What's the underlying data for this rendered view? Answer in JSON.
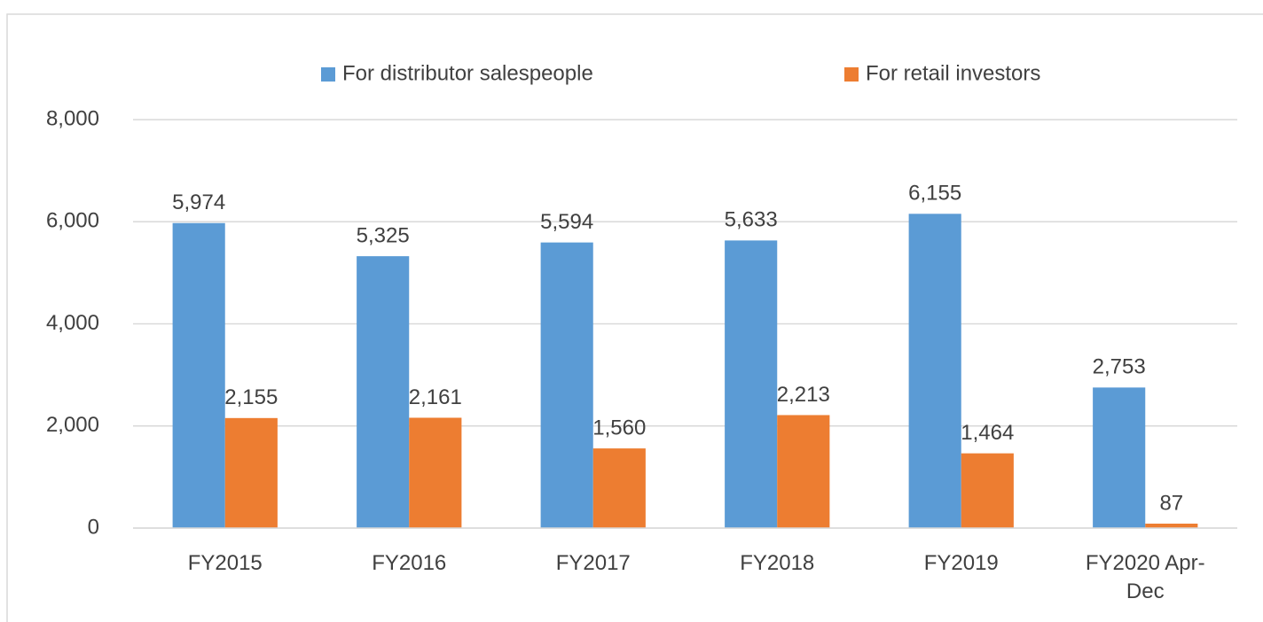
{
  "chart_data": {
    "type": "bar",
    "categories": [
      "FY2015",
      "FY2016",
      "FY2017",
      "FY2018",
      "FY2019",
      "FY2020 Apr-Dec"
    ],
    "series": [
      {
        "name": "For distributor salespeople",
        "color": "#5b9bd5",
        "values": [
          5974,
          5325,
          5594,
          5633,
          6155,
          2753
        ],
        "value_labels": [
          "5,974",
          "5,325",
          "5,594",
          "5,633",
          "6,155",
          "2,753"
        ]
      },
      {
        "name": "For retail investors",
        "color": "#ed7d31",
        "values": [
          2155,
          2161,
          1560,
          2213,
          1464,
          87
        ],
        "value_labels": [
          "2,155",
          "2,161",
          "1,560",
          "2,213",
          "1,464",
          "87"
        ]
      }
    ],
    "ylim": [
      0,
      8000
    ],
    "yticks": [
      0,
      {
        "value": 2000,
        "label": "2,000"
      },
      {
        "value": 4000,
        "label": "4,000"
      },
      {
        "value": 6000,
        "label": "6,000"
      },
      {
        "value": 8000,
        "label": "8,000"
      }
    ],
    "grid": true,
    "legend": "top"
  }
}
